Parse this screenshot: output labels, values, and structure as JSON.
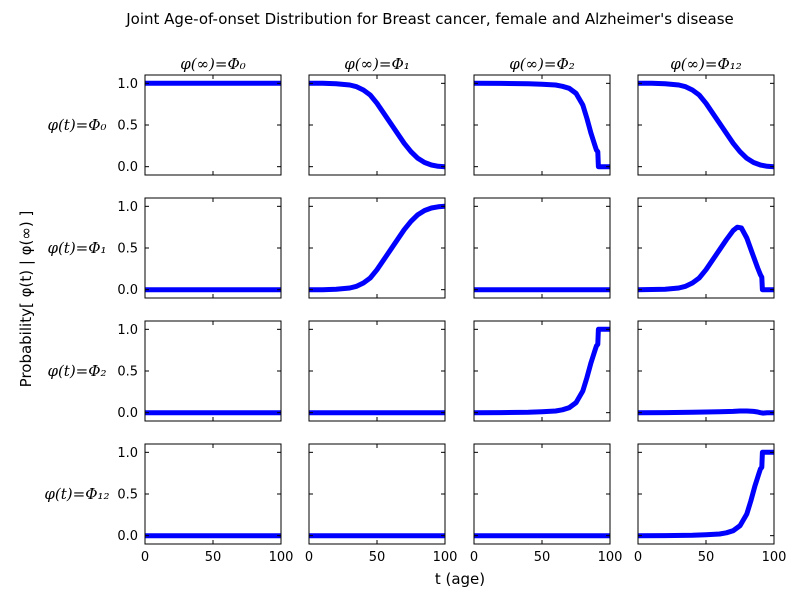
{
  "chart_data": {
    "type": "line",
    "title": "Joint Age-of-onset Distribution for Breast cancer, female and Alzheimer's disease",
    "xlabel": "t (age)",
    "ylabel": "Probability[ φ(t) | φ(∞) ]",
    "xlim": [
      0,
      100
    ],
    "ylim": [
      -0.1,
      1.1
    ],
    "x_ticks": [
      "0",
      "50",
      "100"
    ],
    "y_ticks": [
      "0.0",
      "0.5",
      "1.0"
    ],
    "grid": false,
    "line_color": "#0000ff",
    "column_labels": [
      "φ(∞)=Φ₀",
      "φ(∞)=Φ₁",
      "φ(∞)=Φ₂",
      "φ(∞)=Φ₁₂"
    ],
    "row_labels": [
      "φ(t)=Φ₀",
      "φ(t)=Φ₁",
      "φ(t)=Φ₂",
      "φ(t)=Φ₁₂"
    ],
    "panels": [
      [
        {
          "x": [
            0,
            100
          ],
          "y": [
            1.0,
            1.0
          ]
        },
        {
          "x": [
            0,
            10,
            20,
            30,
            35,
            40,
            45,
            50,
            55,
            60,
            65,
            70,
            75,
            80,
            85,
            90,
            95,
            100
          ],
          "y": [
            1.0,
            1.0,
            0.995,
            0.98,
            0.96,
            0.92,
            0.86,
            0.76,
            0.64,
            0.52,
            0.4,
            0.28,
            0.18,
            0.1,
            0.05,
            0.02,
            0.005,
            0.0
          ]
        },
        {
          "x": [
            0,
            20,
            40,
            50,
            60,
            65,
            70,
            75,
            80,
            83,
            86,
            89,
            90,
            91,
            91.5,
            100
          ],
          "y": [
            1.0,
            0.999,
            0.995,
            0.99,
            0.98,
            0.965,
            0.94,
            0.88,
            0.74,
            0.58,
            0.4,
            0.25,
            0.2,
            0.18,
            0.0,
            0.0
          ]
        },
        {
          "x": [
            0,
            10,
            20,
            30,
            35,
            40,
            45,
            50,
            55,
            60,
            65,
            70,
            75,
            80,
            85,
            90,
            95,
            100
          ],
          "y": [
            1.0,
            1.0,
            0.995,
            0.98,
            0.96,
            0.92,
            0.86,
            0.76,
            0.64,
            0.52,
            0.4,
            0.28,
            0.18,
            0.1,
            0.05,
            0.02,
            0.005,
            0.0
          ]
        }
      ],
      [
        {
          "x": [
            0,
            100
          ],
          "y": [
            0.0,
            0.0
          ]
        },
        {
          "x": [
            0,
            10,
            20,
            30,
            35,
            40,
            45,
            50,
            55,
            60,
            65,
            70,
            75,
            80,
            85,
            90,
            95,
            100
          ],
          "y": [
            0.0,
            0.0,
            0.005,
            0.02,
            0.04,
            0.08,
            0.14,
            0.24,
            0.36,
            0.48,
            0.6,
            0.72,
            0.82,
            0.9,
            0.95,
            0.98,
            0.995,
            1.0
          ]
        },
        {
          "x": [
            0,
            100
          ],
          "y": [
            0.0,
            0.0
          ]
        },
        {
          "x": [
            0,
            20,
            30,
            35,
            40,
            45,
            50,
            55,
            60,
            65,
            70,
            73,
            76,
            80,
            84,
            88,
            90,
            91,
            91.5,
            100
          ],
          "y": [
            0.0,
            0.005,
            0.02,
            0.04,
            0.08,
            0.14,
            0.24,
            0.36,
            0.48,
            0.6,
            0.71,
            0.75,
            0.74,
            0.62,
            0.44,
            0.26,
            0.18,
            0.15,
            0.0,
            0.0
          ]
        }
      ],
      [
        {
          "x": [
            0,
            100
          ],
          "y": [
            0.0,
            0.0
          ]
        },
        {
          "x": [
            0,
            100
          ],
          "y": [
            0.0,
            0.0
          ]
        },
        {
          "x": [
            0,
            20,
            40,
            50,
            60,
            65,
            70,
            75,
            80,
            83,
            86,
            89,
            90,
            91,
            91.5,
            100
          ],
          "y": [
            0.0,
            0.001,
            0.005,
            0.01,
            0.02,
            0.035,
            0.06,
            0.12,
            0.26,
            0.42,
            0.6,
            0.75,
            0.8,
            0.82,
            1.0,
            1.0
          ]
        },
        {
          "x": [
            0,
            20,
            40,
            60,
            70,
            75,
            80,
            85,
            88,
            90,
            92,
            95,
            100
          ],
          "y": [
            0.0,
            0.001,
            0.004,
            0.01,
            0.015,
            0.02,
            0.02,
            0.015,
            0.008,
            0.0,
            -0.005,
            0.0,
            0.0
          ]
        }
      ],
      [
        {
          "x": [
            0,
            100
          ],
          "y": [
            0.0,
            0.0
          ]
        },
        {
          "x": [
            0,
            100
          ],
          "y": [
            0.0,
            0.0
          ]
        },
        {
          "x": [
            0,
            100
          ],
          "y": [
            0.0,
            0.0
          ]
        },
        {
          "x": [
            0,
            20,
            40,
            50,
            60,
            65,
            70,
            75,
            80,
            83,
            86,
            89,
            90,
            91,
            91.5,
            100
          ],
          "y": [
            0.0,
            0.001,
            0.005,
            0.01,
            0.02,
            0.035,
            0.06,
            0.12,
            0.26,
            0.42,
            0.6,
            0.75,
            0.8,
            0.82,
            1.0,
            1.0
          ]
        }
      ]
    ]
  }
}
